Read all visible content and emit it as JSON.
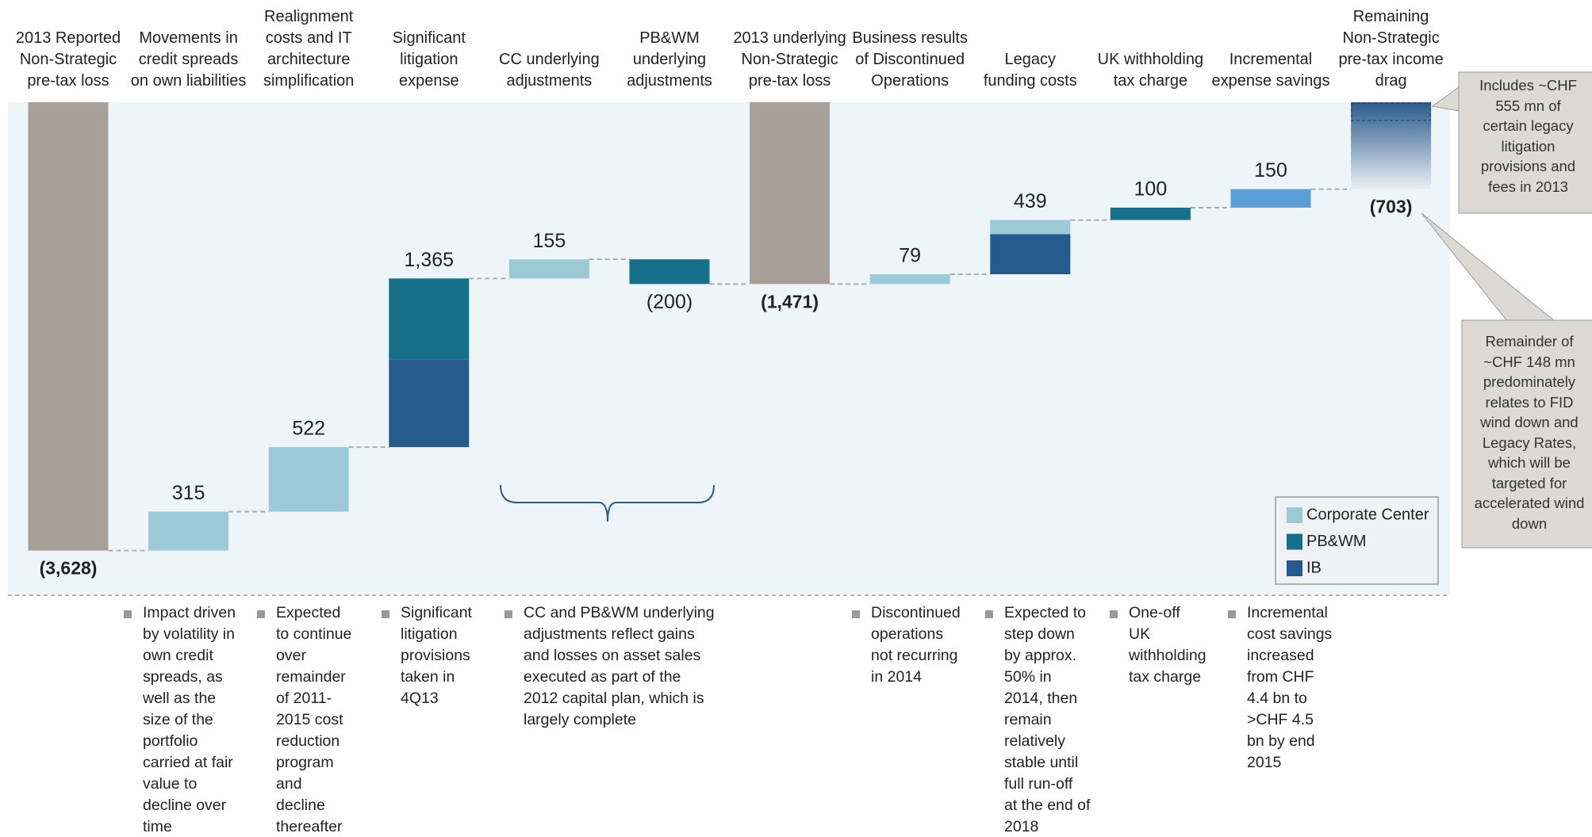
{
  "chart_data": {
    "type": "waterfall",
    "categories": [
      "2013 Reported\nNon-Strategic\npre-tax loss",
      "Movements in\ncredit spreads\non own liabilities",
      "Realignment\ncosts and IT\narchitecture\nsimplification",
      "Significant\nlitigation\nexpense",
      "CC underlying\nadjustments",
      "PB&WM\nunderlying\nadjustments",
      "2013 underlying\nNon-Strategic\npre-tax loss",
      "Business results\nof Discontinued\nOperations",
      "Legacy\nfunding costs",
      "UK withholding\ntax charge",
      "Incremental\nexpense savings",
      "Remaining\nNon-Strategic\npre-tax income\ndrag"
    ],
    "values": [
      -3628,
      315,
      522,
      1365,
      155,
      -200,
      -1471,
      79,
      439,
      100,
      150,
      -703
    ],
    "value_labels": [
      "(3,628)",
      "315",
      "522",
      "1,365",
      "155",
      "(200)",
      "(1,471)",
      "79",
      "439",
      "100",
      "150",
      "(703)"
    ],
    "colors": [
      "#a89f99",
      null,
      null,
      null,
      null,
      null,
      "#a89f99",
      null,
      null,
      null,
      "#5b9fd8",
      "#2a5a8c"
    ],
    "series": [
      {
        "name": "Corporate Center",
        "color": "#9cc9d6",
        "values": [
          null,
          315,
          522,
          null,
          155,
          null,
          null,
          79,
          114,
          null,
          null,
          null
        ]
      },
      {
        "name": "PB&WM",
        "color": "#16708a",
        "values": [
          null,
          null,
          null,
          658,
          null,
          -200,
          null,
          null,
          null,
          100,
          null,
          null
        ]
      },
      {
        "name": "IB",
        "color": "#255b8c",
        "values": [
          null,
          null,
          null,
          707,
          null,
          null,
          null,
          null,
          325,
          null,
          null,
          null
        ]
      }
    ],
    "ylim": [
      -4000,
      0
    ],
    "notes": [
      "Impact driven\nby volatility in\nown credit\nspreads, as\nwell as the\nsize of the\nportfolio\ncarried at fair\nvalue to\ndecline over\ntime",
      "Expected\nto continue\nover\nremainder\nof 2011-\n2015 cost\nreduction\nprogram\nand\ndecline\nthereafter",
      "Significant\nlitigation\nprovisions\ntaken in\n4Q13",
      "CC and PB&WM underlying\nadjustments reflect gains\nand losses on asset sales\nexecuted as part of the\n2012 capital plan, which is\nlargely complete",
      "Discontinued\noperations\nnot recurring\nin 2014",
      "Expected to\nstep down\nby approx.\n50% in\n2014, then\nremain\nrelatively\nstable until\nfull run-off\nat the end of\n2018",
      "One-off\nUK\nwithholding\ntax charge",
      "Incremental\ncost savings\nincreased\nfrom CHF\n4.4 bn to\n>CHF 4.5\nbn by end\n2015"
    ],
    "callouts": [
      "Includes ~CHF\n555 mn of\ncertain legacy\nlitigation\nprovisions and\nfees in 2013",
      "Remainder of\n~CHF 148 mn\npredominately\nrelates to FID\nwind down and\nLegacy Rates,\nwhich will be\ntargeted for\naccelerated wind\ndown"
    ]
  }
}
